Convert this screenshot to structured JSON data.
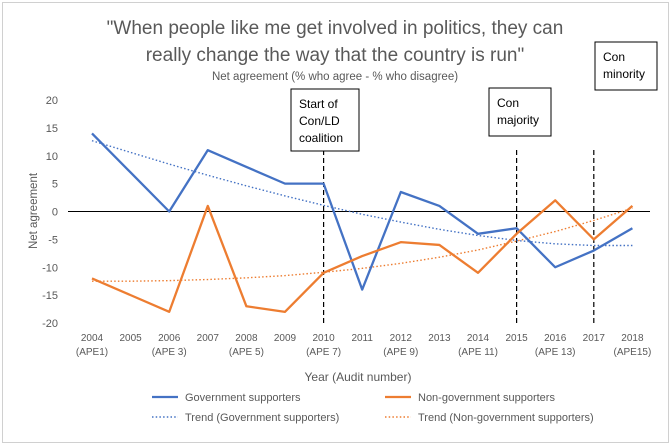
{
  "chart_data": {
    "type": "line",
    "title": "\"When people like me get involved in politics, they can really change the way that the country is run\"",
    "title_line1": "\"When people like me get involved in politics, they can",
    "title_line2": "really change the way that the country is run\"",
    "subtitle": "Net agreement (% who agree - % who disagree)",
    "xlabel": "Year (Audit number)",
    "ylabel": "Net agreement",
    "ylim": [
      -20,
      20
    ],
    "yticks": [
      "20",
      "15",
      "10",
      "5",
      "0",
      "-5",
      "-10",
      "-15",
      "-20"
    ],
    "categories": [
      {
        "year": "2004",
        "audit": "(APE1)"
      },
      {
        "year": "2005",
        "audit": ""
      },
      {
        "year": "2006",
        "audit": "(APE 3)"
      },
      {
        "year": "2007",
        "audit": ""
      },
      {
        "year": "2008",
        "audit": "(APE 5)"
      },
      {
        "year": "2009",
        "audit": ""
      },
      {
        "year": "2010",
        "audit": "(APE 7)"
      },
      {
        "year": "2011",
        "audit": ""
      },
      {
        "year": "2012",
        "audit": "(APE 9)"
      },
      {
        "year": "2013",
        "audit": ""
      },
      {
        "year": "2014",
        "audit": "(APE 11)"
      },
      {
        "year": "2015",
        "audit": ""
      },
      {
        "year": "2016",
        "audit": "(APE 13)"
      },
      {
        "year": "2017",
        "audit": ""
      },
      {
        "year": "2018",
        "audit": "(APE15)"
      }
    ],
    "series": [
      {
        "name": "Government supporters",
        "color": "#4472c4",
        "values": [
          14,
          7,
          0,
          11,
          8,
          5,
          5,
          -14,
          3.5,
          1,
          -4,
          -3,
          -10,
          -7,
          -3
        ]
      },
      {
        "name": "Non-government supporters",
        "color": "#ed7d31",
        "values": [
          -12,
          -15,
          -18,
          1,
          -17,
          -18,
          -11,
          -8,
          -5.5,
          -6,
          -11,
          -4,
          2,
          -5,
          1
        ]
      }
    ],
    "trends": [
      {
        "name": "Trend (Government supporters)",
        "color": "#4472c4",
        "values": [
          12.7,
          10.6,
          8.5,
          6.5,
          4.6,
          2.8,
          1.1,
          -0.5,
          -1.9,
          -3.2,
          -4.3,
          -5.2,
          -5.8,
          -6.1,
          -6.1
        ]
      },
      {
        "name": "Trend (Non-government supporters)",
        "color": "#ed7d31",
        "values": [
          -12.5,
          -12.5,
          -12.4,
          -12.2,
          -11.9,
          -11.5,
          -10.9,
          -10.2,
          -9.3,
          -8.2,
          -6.9,
          -5.3,
          -3.6,
          -1.6,
          0.6
        ]
      }
    ],
    "annotations": [
      {
        "x_index": 6,
        "lines": [
          "Start of",
          "Con/LD",
          "coalition"
        ]
      },
      {
        "x_index": 11,
        "lines": [
          "Con",
          "majority"
        ]
      },
      {
        "x_index": 13,
        "lines": [
          "Con",
          "minority"
        ]
      }
    ],
    "legend": {
      "position": "bottom",
      "items": [
        {
          "label": "Government supporters",
          "color": "#4472c4",
          "style": "solid"
        },
        {
          "label": "Non-government supporters",
          "color": "#ed7d31",
          "style": "solid"
        },
        {
          "label": "Trend (Government supporters)",
          "color": "#4472c4",
          "style": "dotted"
        },
        {
          "label": "Trend (Non-government supporters)",
          "color": "#ed7d31",
          "style": "dotted"
        }
      ]
    }
  }
}
